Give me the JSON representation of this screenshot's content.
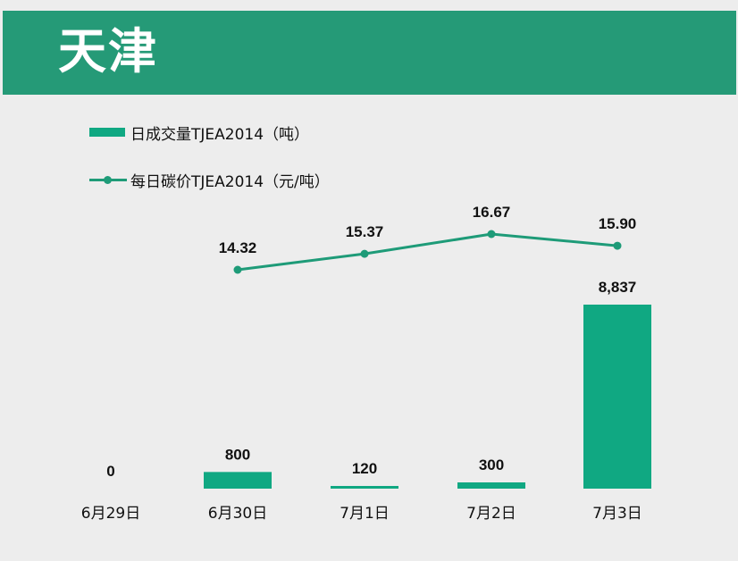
{
  "header": {
    "title": "天津"
  },
  "colors": {
    "header_bg": "#259a77",
    "bar": "#10a882",
    "line": "#1e9b78",
    "background": "#ededed"
  },
  "chart_data": {
    "type": "bar+line",
    "categories": [
      "6月29日",
      "6月30日",
      "7月1日",
      "7月2日",
      "7月3日"
    ],
    "series": [
      {
        "name": "日成交量TJEA2014（吨）",
        "type": "bar",
        "values": [
          0,
          800,
          120,
          300,
          8837
        ],
        "labels": [
          "0",
          "800",
          "120",
          "300",
          "8,837"
        ]
      },
      {
        "name": "每日碳价TJEA2014（元/吨）",
        "type": "line",
        "values": [
          null,
          14.32,
          15.37,
          16.67,
          15.9
        ],
        "labels": [
          "",
          "14.32",
          "15.37",
          "16.67",
          "15.90"
        ]
      }
    ],
    "legend": "top-left",
    "grid": false
  }
}
